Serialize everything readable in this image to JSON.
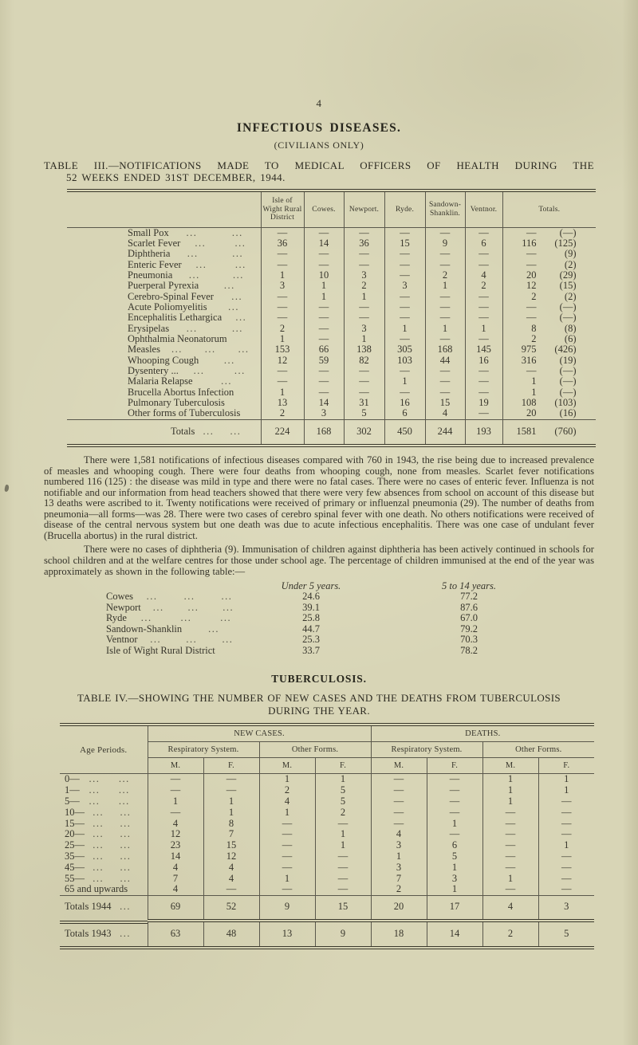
{
  "colors": {
    "paper": "#d8d5b6",
    "ink": "#333127",
    "rule": "#3a382b"
  },
  "page": {
    "number": "4",
    "title": "INFECTIOUS DISEASES.",
    "subtitle": "(CIVILIANS ONLY)"
  },
  "table3": {
    "caption_line1": "TABLE III.—NOTIFICATIONS MADE TO MEDICAL OFFICERS OF HEALTH DURING THE",
    "caption_line2": "52 WEEKS ENDED 31ST DECEMBER, 1944.",
    "columns": [
      "Isle of Wight Rural District",
      "Cowes.",
      "Newport.",
      "Ryde.",
      "Sandown-Shanklin.",
      "Ventnor.",
      "Totals."
    ],
    "rows": [
      {
        "label": "Small Pox",
        "dots": "... ...",
        "values": [
          "—",
          "—",
          "—",
          "—",
          "—",
          "—"
        ],
        "total": "—",
        "paren": "(—)"
      },
      {
        "label": "Scarlet Fever",
        "dots": "... ...",
        "values": [
          "36",
          "14",
          "36",
          "15",
          "9",
          "6"
        ],
        "total": "116",
        "paren": "(125)"
      },
      {
        "label": "Diphtheria",
        "dots": "... ...",
        "values": [
          "—",
          "—",
          "—",
          "—",
          "—",
          "—"
        ],
        "total": "—",
        "paren": "(9)"
      },
      {
        "label": "Enteric Fever",
        "dots": "... ...",
        "values": [
          "—",
          "—",
          "—",
          "—",
          "—",
          "—"
        ],
        "total": "—",
        "paren": "(2)"
      },
      {
        "label": "Pneumonia",
        "dots": "... ...",
        "values": [
          "1",
          "10",
          "3",
          "—",
          "2",
          "4"
        ],
        "total": "20",
        "paren": "(29)"
      },
      {
        "label": "Puerperal Pyrexia",
        "dots": "...",
        "values": [
          "3",
          "1",
          "2",
          "3",
          "1",
          "2"
        ],
        "total": "12",
        "paren": "(15)"
      },
      {
        "label": "Cerebro-Spinal Fever",
        "dots": "...",
        "values": [
          "—",
          "1",
          "1",
          "—",
          "—",
          "—"
        ],
        "total": "2",
        "paren": "(2)"
      },
      {
        "label": "Acute Poliomyelitis",
        "dots": "...",
        "values": [
          "—",
          "—",
          "—",
          "—",
          "—",
          "—"
        ],
        "total": "—",
        "paren": "(—)"
      },
      {
        "label": "Encephalitis Lethargica",
        "dots": "...",
        "values": [
          "—",
          "—",
          "—",
          "—",
          "—",
          "—"
        ],
        "total": "—",
        "paren": "(—)"
      },
      {
        "label": "Erysipelas",
        "dots": "... ...",
        "values": [
          "2",
          "—",
          "3",
          "1",
          "1",
          "1"
        ],
        "total": "8",
        "paren": "(8)"
      },
      {
        "label": "Ophthalmia Neonatorum",
        "dots": "",
        "values": [
          "1",
          "—",
          "1",
          "—",
          "—",
          "—"
        ],
        "total": "2",
        "paren": "(6)"
      },
      {
        "label": "Measles",
        "dots": "... ... ...",
        "values": [
          "153",
          "66",
          "138",
          "305",
          "168",
          "145"
        ],
        "total": "975",
        "paren": "(426)"
      },
      {
        "label": "Whooping Cough",
        "dots": "...",
        "values": [
          "12",
          "59",
          "82",
          "103",
          "44",
          "16"
        ],
        "total": "316",
        "paren": "(19)"
      },
      {
        "label": "Dysentery ...",
        "dots": "... ...",
        "values": [
          "—",
          "—",
          "—",
          "—",
          "—",
          "—"
        ],
        "total": "—",
        "paren": "(—)"
      },
      {
        "label": "Malaria Relapse",
        "dots": "...",
        "values": [
          "—",
          "—",
          "—",
          "1",
          "—",
          "—"
        ],
        "total": "1",
        "paren": "(—)"
      },
      {
        "label": "Brucella Abortus Infection",
        "dots": "",
        "values": [
          "1",
          "—",
          "—",
          "—",
          "—",
          "—"
        ],
        "total": "1",
        "paren": "(—)"
      },
      {
        "label": "Pulmonary Tuberculosis",
        "dots": "",
        "values": [
          "13",
          "14",
          "31",
          "16",
          "15",
          "19"
        ],
        "total": "108",
        "paren": "(103)"
      },
      {
        "label": "Other forms of Tuberculosis",
        "dots": "",
        "values": [
          "2",
          "3",
          "5",
          "6",
          "4",
          "—"
        ],
        "total": "20",
        "paren": "(16)"
      }
    ],
    "totals_row": {
      "label": "Totals",
      "dots": "... ...",
      "values": [
        "224",
        "168",
        "302",
        "450",
        "244",
        "193"
      ],
      "total": "1581",
      "paren": "(760)"
    }
  },
  "paragraphs": {
    "p1": "There were 1,581 notifications of infectious diseases compared with 760 in 1943, the rise being due to increased prevalence of measles and whooping cough.  There were four deaths from whooping cough, none from measles.  Scarlet  fever notifications numbered 116 (125) : the disease was mild in type and there were no fatal cases.  There were no cases of enteric fever.  Influenza is not notifiable and our information from head teachers showed that there were very few absences from school on account of this disease but 13 deaths were ascribed to it.  Twenty notifications were received of primary or influenzal pneumonia (29).  The number of deaths from pneumonia—all forms—was 28.  There were two cases of cerebro spinal fever with one death.  No others notifications were received of disease of the central nervous system but one death was due to acute infectious encephalitis.  There was one case of undulant fever (Brucella abortus) in the rural district.",
    "p2": "There were no cases of diphtheria (9).  Immunisation of children against diphtheria has been actively continued in schools for school children and at the welfare centres for those under school age.  The percentage of children immunised at the end of the year was approximately as shown in the following table:—"
  },
  "immunisation": {
    "header_under5": "Under 5 years.",
    "header_5to14": "5 to 14 years.",
    "rows": [
      {
        "label": "Cowes",
        "dots": "... ... ...",
        "under5": "24.6",
        "five14": "77.2"
      },
      {
        "label": "Newport",
        "dots": "... ... ...",
        "under5": "39.1",
        "five14": "87.6"
      },
      {
        "label": "Ryde",
        "dots": "... ... ...",
        "under5": "25.8",
        "five14": "67.0"
      },
      {
        "label": "Sandown-Shanklin",
        "dots": "...",
        "under5": "44.7",
        "five14": "79.2"
      },
      {
        "label": "Ventnor",
        "dots": "... ... ...",
        "under5": "25.3",
        "five14": "70.3"
      },
      {
        "label": "Isle of Wight Rural District",
        "dots": "",
        "under5": "33.7",
        "five14": "78.2"
      }
    ]
  },
  "tb": {
    "heading": "TUBERCULOSIS.",
    "caption_line1": "TABLE IV.—SHOWING THE NUMBER OF NEW CASES AND THE DEATHS FROM TUBERCULOSIS",
    "caption_line2": "DURING THE YEAR.",
    "age_header": "Age  Periods.",
    "groups": {
      "new_cases": "NEW  CASES.",
      "deaths": "DEATHS.",
      "resp": "Respiratory System.",
      "other": "Other Forms.",
      "m": "M.",
      "f": "F."
    },
    "rows": [
      {
        "label": "0—",
        "dots": "... ...",
        "values": [
          "—",
          "—",
          "1",
          "1",
          "—",
          "—",
          "1",
          "1"
        ]
      },
      {
        "label": "1—",
        "dots": "... ...",
        "values": [
          "—",
          "—",
          "2",
          "5",
          "—",
          "—",
          "1",
          "1"
        ]
      },
      {
        "label": "5—",
        "dots": "... ...",
        "values": [
          "1",
          "1",
          "4",
          "5",
          "—",
          "—",
          "1",
          "—"
        ]
      },
      {
        "label": "10—",
        "dots": "... ...",
        "values": [
          "—",
          "1",
          "1",
          "2",
          "—",
          "—",
          "—",
          "—"
        ]
      },
      {
        "label": "15—",
        "dots": "... ...",
        "values": [
          "4",
          "8",
          "—",
          "—",
          "—",
          "1",
          "—",
          "—"
        ]
      },
      {
        "label": "20—",
        "dots": "... ...",
        "values": [
          "12",
          "7",
          "—",
          "1",
          "4",
          "—",
          "—",
          "—"
        ]
      },
      {
        "label": "25—",
        "dots": "... ...",
        "values": [
          "23",
          "15",
          "—",
          "1",
          "3",
          "6",
          "—",
          "1"
        ]
      },
      {
        "label": "35—",
        "dots": "... ...",
        "values": [
          "14",
          "12",
          "—",
          "—",
          "1",
          "5",
          "—",
          "—"
        ]
      },
      {
        "label": "45—",
        "dots": "... ...",
        "values": [
          "4",
          "4",
          "—",
          "—",
          "3",
          "1",
          "—",
          "—"
        ]
      },
      {
        "label": "55—",
        "dots": "... ...",
        "values": [
          "7",
          "4",
          "1",
          "—",
          "7",
          "3",
          "1",
          "—"
        ]
      },
      {
        "label": "65 and upwards",
        "dots": "",
        "values": [
          "4",
          "—",
          "—",
          "—",
          "2",
          "1",
          "—",
          "—"
        ]
      }
    ],
    "totals_1944": {
      "label": "Totals 1944",
      "dots": "...",
      "values": [
        "69",
        "52",
        "9",
        "15",
        "20",
        "17",
        "4",
        "3"
      ]
    },
    "totals_1943": {
      "label": "Totals 1943",
      "dots": "...",
      "values": [
        "63",
        "48",
        "13",
        "9",
        "18",
        "14",
        "2",
        "5"
      ]
    }
  }
}
